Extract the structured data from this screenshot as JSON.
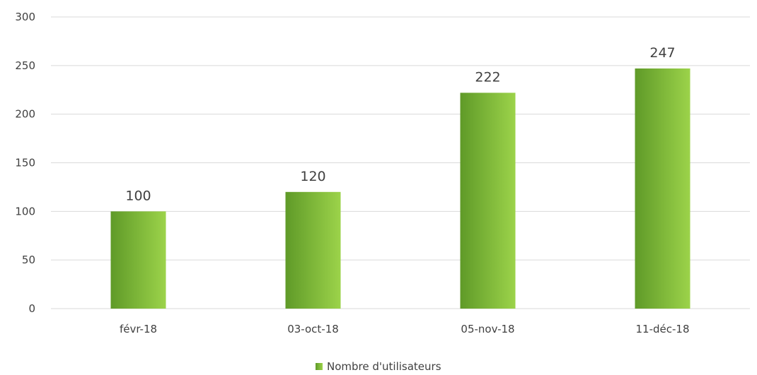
{
  "chart_data": {
    "type": "bar",
    "categories": [
      "févr-18",
      "03-oct-18",
      "05-nov-18",
      "11-déc-18"
    ],
    "series": [
      {
        "name": "Nombre d'utilisateurs",
        "values": [
          100,
          120,
          222,
          247
        ]
      }
    ],
    "ylim": [
      0,
      300
    ],
    "yticks": [
      0,
      50,
      100,
      150,
      200,
      250,
      300
    ],
    "grid": true,
    "legend": "bottom",
    "colors": {
      "bar_dark": "#5f9a28",
      "bar_light": "#9cd34a",
      "grid": "#d9d9d9",
      "text": "#404040"
    }
  }
}
